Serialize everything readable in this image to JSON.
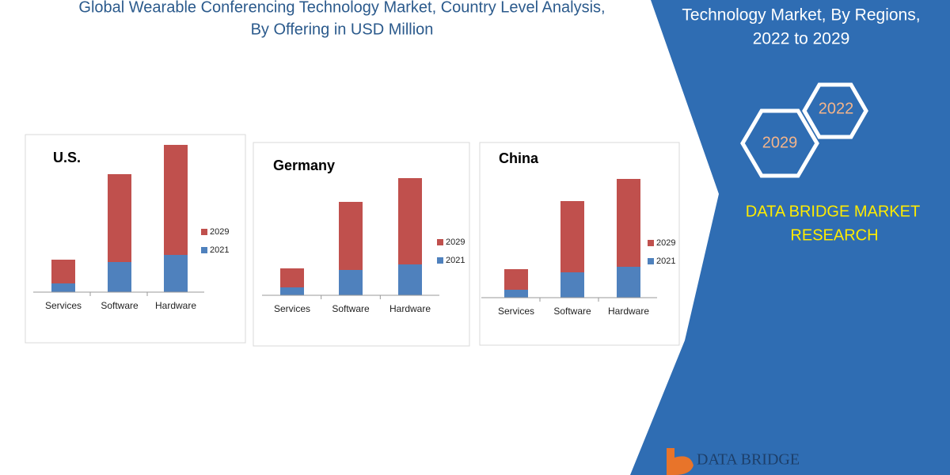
{
  "title_lines": [
    "Global Wearable Conferencing Technology Market, Country Level Analysis,",
    "By Offering in USD Million"
  ],
  "panel": {
    "lines": [
      "Technology Market, By Regions,",
      "2022 to 2029"
    ],
    "hexagons": [
      "2022",
      "2029"
    ],
    "brand_lines": [
      "DATA BRIDGE MARKET",
      "RESEARCH"
    ],
    "logo": "DATA BRIDGE"
  },
  "chart_data": [
    {
      "type": "bar",
      "stacked": true,
      "title": "U.S.",
      "categories": [
        "Services",
        "Software",
        "Hardware"
      ],
      "series": [
        {
          "name": "2021",
          "color": "#4f81bd",
          "values": [
            11,
            38,
            47
          ]
        },
        {
          "name": "2029",
          "color": "#c0504d",
          "values": [
            30,
            111,
            139
          ]
        }
      ]
    },
    {
      "type": "bar",
      "stacked": true,
      "title": "Germany",
      "categories": [
        "Services",
        "Software",
        "Hardware"
      ],
      "series": [
        {
          "name": "2021",
          "color": "#4f81bd",
          "values": [
            10,
            32,
            39
          ]
        },
        {
          "name": "2029",
          "color": "#c0504d",
          "values": [
            24,
            86,
            109
          ]
        }
      ]
    },
    {
      "type": "bar",
      "stacked": true,
      "title": "China",
      "categories": [
        "Services",
        "Software",
        "Hardware"
      ],
      "series": [
        {
          "name": "2021",
          "color": "#4f81bd",
          "values": [
            10,
            32,
            39
          ]
        },
        {
          "name": "2029",
          "color": "#c0504d",
          "values": [
            26,
            90,
            111
          ]
        }
      ]
    }
  ]
}
